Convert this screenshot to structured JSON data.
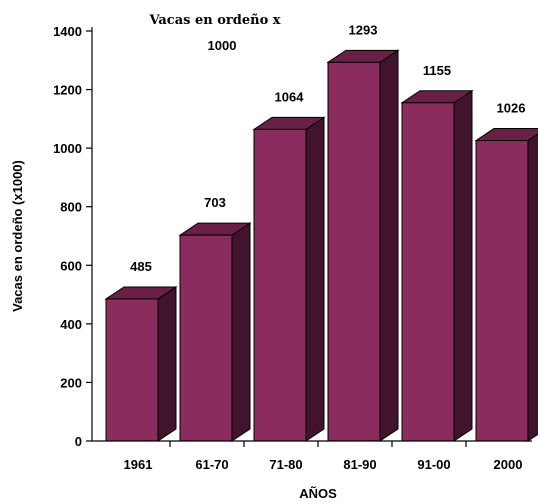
{
  "chart_data": {
    "type": "bar",
    "title": "Vacas en ordeño x",
    "subtitle": "1000",
    "xlabel": "AÑOS",
    "ylabel": "Vacas en ordeño (x1000)",
    "categories": [
      "1961",
      "61-70",
      "71-80",
      "81-90",
      "91-00",
      "2000"
    ],
    "values": [
      485,
      703,
      1064,
      1293,
      1155,
      1026
    ],
    "data_labels": [
      "485",
      "703",
      "1064",
      "1293",
      "1155",
      "1026"
    ],
    "ylim": [
      0,
      1400
    ],
    "yticks": [
      "0",
      "200",
      "400",
      "600",
      "800",
      "1000",
      "1200",
      "1400"
    ],
    "grid": false,
    "legend": "none",
    "style": "3d-bar",
    "colors": {
      "front": "#8b2c5e",
      "top": "#6a1f47",
      "side": "#42132d",
      "outline": "#000000"
    }
  }
}
